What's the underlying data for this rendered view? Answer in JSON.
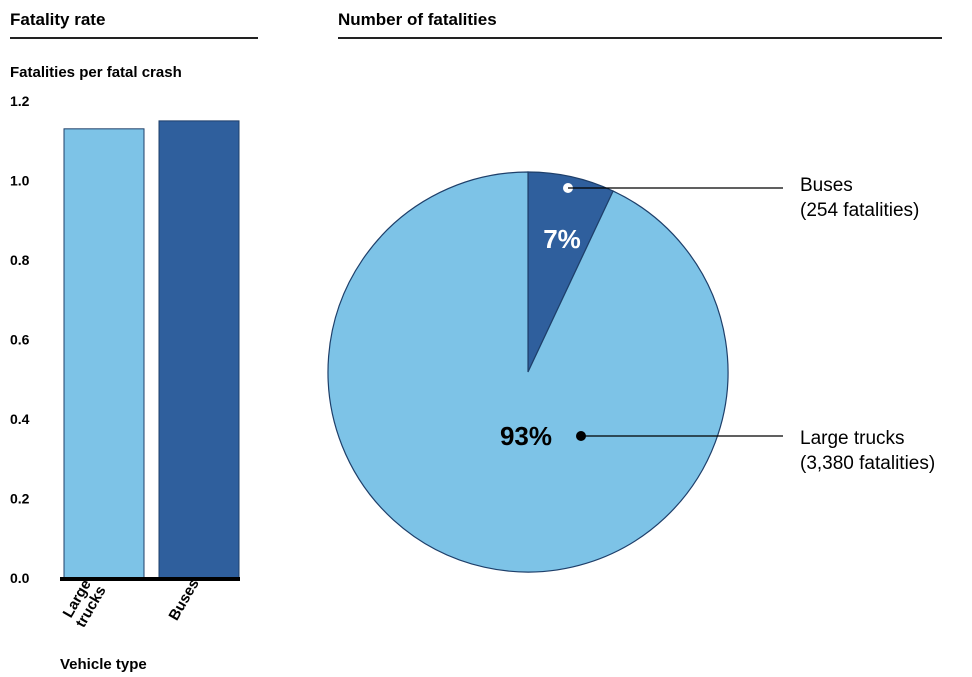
{
  "left_panel": {
    "title": "Fatality rate"
  },
  "right_panel": {
    "title": "Number of fatalities"
  },
  "colors": {
    "light_blue": "#7dc3e7",
    "dark_blue": "#2f5f9d"
  },
  "chart_data": [
    {
      "type": "bar",
      "ylabel": "Fatalities per fatal crash",
      "xlabel": "Vehicle type",
      "categories": [
        "Large\ntrucks",
        "Buses"
      ],
      "values": [
        1.13,
        1.15
      ],
      "colors": [
        "#7dc3e7",
        "#2f5f9d"
      ],
      "ylim": [
        0,
        1.2
      ],
      "yticks": [
        "0.0",
        "0.2",
        "0.4",
        "0.6",
        "0.8",
        "1.0",
        "1.2"
      ],
      "grid": false
    },
    {
      "type": "pie",
      "slices": [
        {
          "name": "Buses",
          "percent": 7,
          "label": "7%",
          "detail": "(254 fatalities)",
          "color": "#2f5f9d"
        },
        {
          "name": "Large trucks",
          "percent": 93,
          "label": "93%",
          "detail": "(3,380 fatalities)",
          "color": "#7dc3e7"
        }
      ]
    }
  ]
}
